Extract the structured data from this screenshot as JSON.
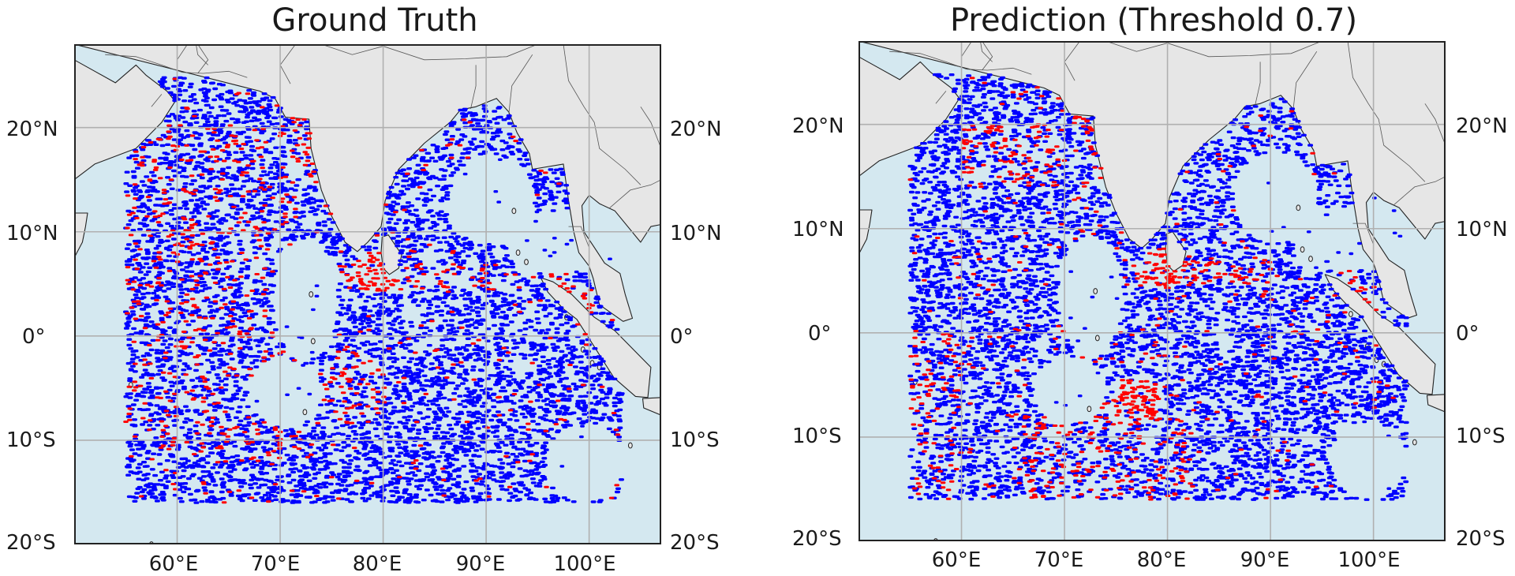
{
  "panels": [
    {
      "title": "Ground Truth",
      "lat_labels": [
        "20°N",
        "10°N",
        "0°",
        "10°S",
        "20°S"
      ],
      "lon_labels": [
        "60°E",
        "70°E",
        "80°E",
        "90°E",
        "100°E"
      ]
    },
    {
      "title": "Prediction (Threshold  0.7)",
      "lat_labels": [
        "20°N",
        "10°N",
        "0°",
        "10°S",
        "20°S"
      ],
      "lon_labels": [
        "60°E",
        "70°E",
        "80°E",
        "90°E",
        "100°E"
      ]
    }
  ],
  "map_extent": {
    "lon": [
      50,
      107
    ],
    "lat": [
      -20,
      28
    ]
  },
  "colors": {
    "ocean": "#d4e8f0",
    "land": "#e6e6e6",
    "coastline": "#222222",
    "gridline": "#b0b0b0",
    "points_primary": "#0000ff",
    "points_highlight": "#ff0000"
  }
}
